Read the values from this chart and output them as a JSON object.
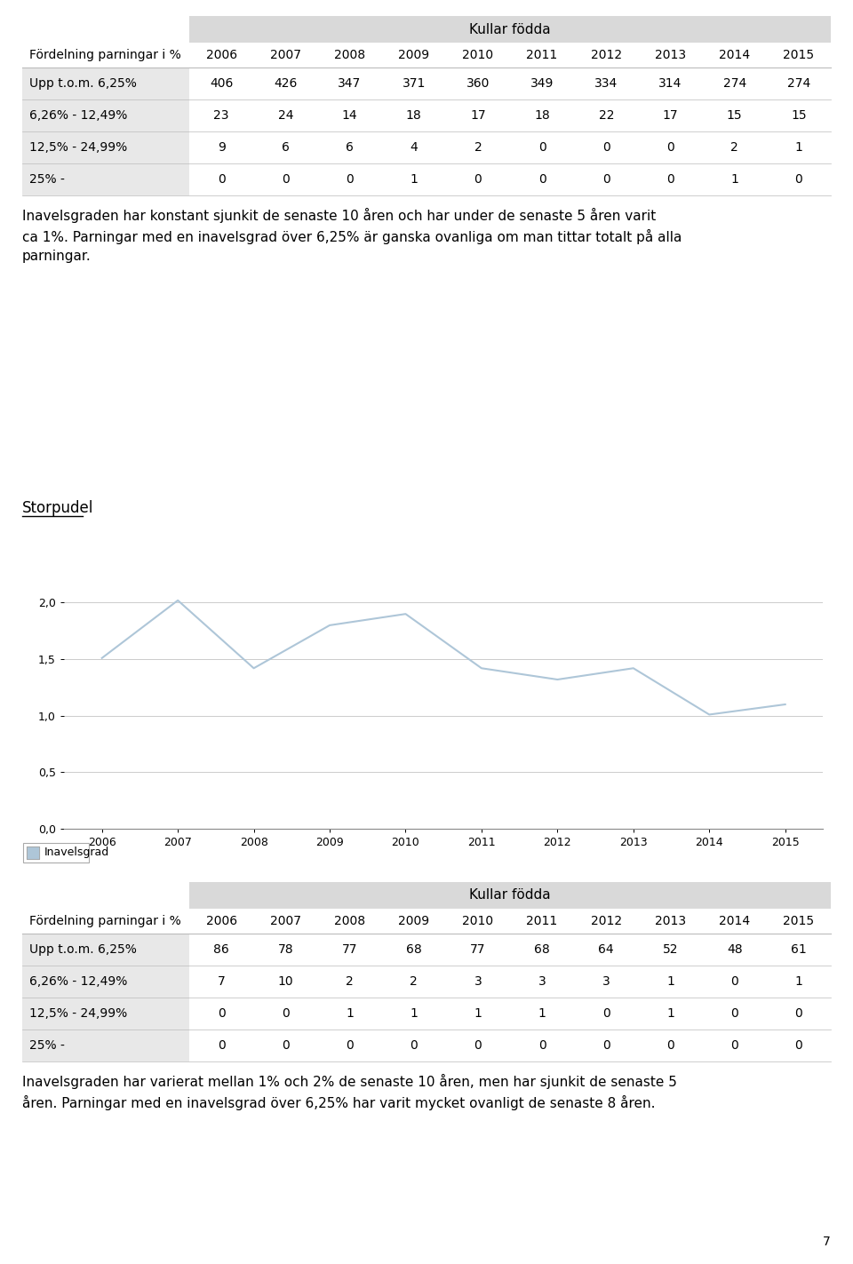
{
  "table1": {
    "header": "Kullar födda",
    "col_header": [
      "Fördelning parningar i %",
      "2006",
      "2007",
      "2008",
      "2009",
      "2010",
      "2011",
      "2012",
      "2013",
      "2014",
      "2015"
    ],
    "rows": [
      [
        "Upp t.o.m. 6,25%",
        "406",
        "426",
        "347",
        "371",
        "360",
        "349",
        "334",
        "314",
        "274",
        "274"
      ],
      [
        "6,26% - 12,49%",
        "23",
        "24",
        "14",
        "18",
        "17",
        "18",
        "22",
        "17",
        "15",
        "15"
      ],
      [
        "12,5% - 24,99%",
        "9",
        "6",
        "6",
        "4",
        "2",
        "0",
        "0",
        "0",
        "2",
        "1"
      ],
      [
        "25% -",
        "0",
        "0",
        "0",
        "1",
        "0",
        "0",
        "0",
        "0",
        "1",
        "0"
      ]
    ]
  },
  "text1": "Inavelsgraden har konstant sjunkit de senaste 10 åren och har under de senaste 5 åren varit\nca 1%. Parningar med en inavelsgrad över 6,25% är ganska ovanliga om man tittar totalt på alla\nparningar.",
  "chart_title": "Storpudel",
  "chart_years": [
    2006,
    2007,
    2008,
    2009,
    2010,
    2011,
    2012,
    2013,
    2014,
    2015
  ],
  "chart_values": [
    1.51,
    2.02,
    1.42,
    1.8,
    1.9,
    1.42,
    1.32,
    1.42,
    1.01,
    1.1
  ],
  "chart_ylim": [
    0.0,
    2.2
  ],
  "chart_yticks": [
    0.0,
    0.5,
    1.0,
    1.5,
    2.0
  ],
  "chart_ytick_labels": [
    "0,0",
    "0,5",
    "1,0",
    "1,5",
    "2,0"
  ],
  "chart_line_color": "#aec6d8",
  "legend_label": "Inavelsgrad",
  "table2": {
    "header": "Kullar födda",
    "col_header": [
      "Fördelning parningar i %",
      "2006",
      "2007",
      "2008",
      "2009",
      "2010",
      "2011",
      "2012",
      "2013",
      "2014",
      "2015"
    ],
    "rows": [
      [
        "Upp t.o.m. 6,25%",
        "86",
        "78",
        "77",
        "68",
        "77",
        "68",
        "64",
        "52",
        "48",
        "61"
      ],
      [
        "6,26% - 12,49%",
        "7",
        "10",
        "2",
        "2",
        "3",
        "3",
        "3",
        "1",
        "0",
        "1"
      ],
      [
        "12,5% - 24,99%",
        "0",
        "0",
        "1",
        "1",
        "1",
        "1",
        "0",
        "1",
        "0",
        "0"
      ],
      [
        "25% -",
        "0",
        "0",
        "0",
        "0",
        "0",
        "0",
        "0",
        "0",
        "0",
        "0"
      ]
    ]
  },
  "text2": "Inavelsgraden har varierat mellan 1% och 2% de senaste 10 åren, men har sjunkit de senaste 5\nåren. Parningar med en inavelsgrad över 6,25% har varit mycket ovanligt de senaste 8 åren.",
  "bg_color": "#ffffff",
  "table_header_bg": "#d9d9d9",
  "table_left_col_bg": "#e8e8e8",
  "page_number": "7"
}
